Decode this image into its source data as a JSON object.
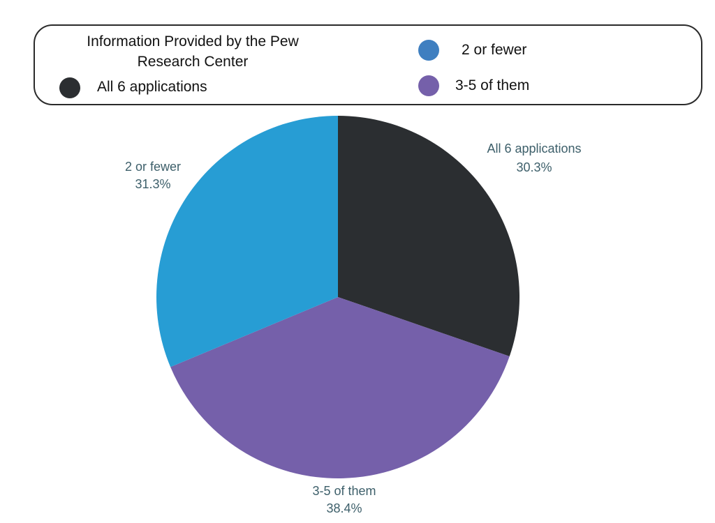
{
  "chart_data": {
    "type": "pie",
    "legend": {
      "title_lines": [
        "Information Provided by the Pew",
        "Research Center"
      ],
      "placement": "top"
    },
    "slices": [
      {
        "label": "All 6 applications",
        "value": 30.3,
        "pct_label": "30.3%",
        "color": "#2b2e31"
      },
      {
        "label": "3-5 of them",
        "value": 38.4,
        "pct_label": "38.4%",
        "color": "#7560aa"
      },
      {
        "label": "2 or fewer",
        "value": 31.3,
        "pct_label": "31.3%",
        "color": "#279dd4"
      }
    ],
    "legend_items": [
      {
        "label": "All 6 applications",
        "color": "#2b2e31"
      },
      {
        "label": "2 or fewer",
        "color": "#3f7fc0"
      },
      {
        "label": "3-5 of them",
        "color": "#7560aa"
      }
    ],
    "start_angle_deg": 0,
    "direction": "clockwise"
  }
}
